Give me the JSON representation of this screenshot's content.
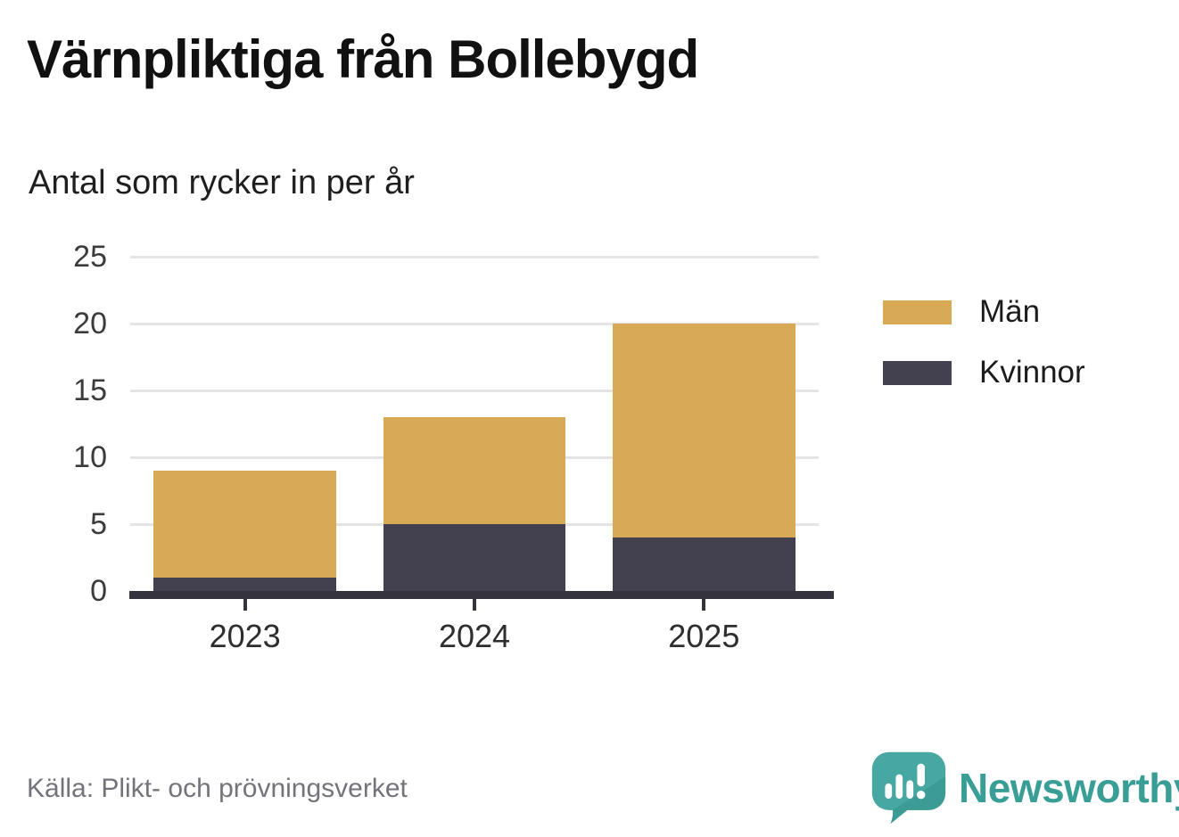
{
  "header": {
    "title": "Värnpliktiga från Bollebygd",
    "subtitle": "Antal som rycker in per år"
  },
  "chart_data": {
    "type": "bar",
    "stacked": true,
    "title": "Värnpliktiga från Bollebygd",
    "subtitle": "Antal som rycker in per år",
    "categories": [
      "2023",
      "2024",
      "2025"
    ],
    "series": [
      {
        "name": "Män",
        "color": "#d9aa55",
        "values": [
          8,
          8,
          16
        ]
      },
      {
        "name": "Kvinnor",
        "color": "#434050",
        "values": [
          1,
          5,
          4
        ]
      }
    ],
    "totals": [
      9,
      13,
      20
    ],
    "xlabel": "",
    "ylabel": "",
    "y_ticks": [
      0,
      5,
      10,
      15,
      20,
      25
    ],
    "ylim": [
      0,
      25
    ],
    "grid": "horizontal",
    "legend_position": "right",
    "axis_color": "#35333c",
    "gridline_color": "#e5e5e5"
  },
  "footer": {
    "source": "Källa: Plikt- och prövningsverket",
    "brand": "Newsworthy",
    "brand_color": "#389e96"
  }
}
